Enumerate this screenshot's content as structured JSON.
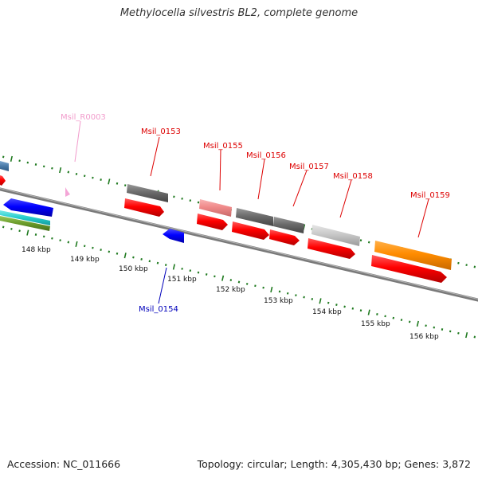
{
  "title": "Methylocella silvestris BL2, complete genome",
  "footer": {
    "accession": "Accession: NC_011666",
    "summary": "Topology: circular; Length: 4,305,430 bp; Genes: 3,872"
  },
  "ticks": {
    "labels": [
      "148 kbp",
      "149 kbp",
      "150 kbp",
      "151 kbp",
      "152 kbp",
      "153 kbp",
      "154 kbp",
      "155 kbp",
      "156 kbp"
    ]
  },
  "genes": [
    {
      "label": "Msil_R0003",
      "color": "#f29ccc"
    },
    {
      "label": "Msil_0153",
      "color": "#dd0000"
    },
    {
      "label": "Msil_0154",
      "color": "#0000bb"
    },
    {
      "label": "Msil_0155",
      "color": "#dd0000"
    },
    {
      "label": "Msil_0156",
      "color": "#dd0000"
    },
    {
      "label": "Msil_0157",
      "color": "#dd0000"
    },
    {
      "label": "Msil_0158",
      "color": "#dd0000"
    },
    {
      "label": "Msil_0159",
      "color": "#dd0000"
    }
  ],
  "colors": {
    "backbone": "#888888",
    "tick_marks": "#1f7a1f",
    "feature_cds_forward": "#ff0000",
    "feature_cds_reverse": "#0000ff",
    "feature_gray": "#6b6b6b",
    "feature_pink": "#f08a8a",
    "feature_light_gray": "#c8c8c8",
    "feature_orange": "#ff8c00",
    "feature_cyan": "#22cccc",
    "feature_olive": "#6a9a2a",
    "feature_steelblue": "#4a7aa8",
    "feature_rna": "#f4a6d7"
  }
}
